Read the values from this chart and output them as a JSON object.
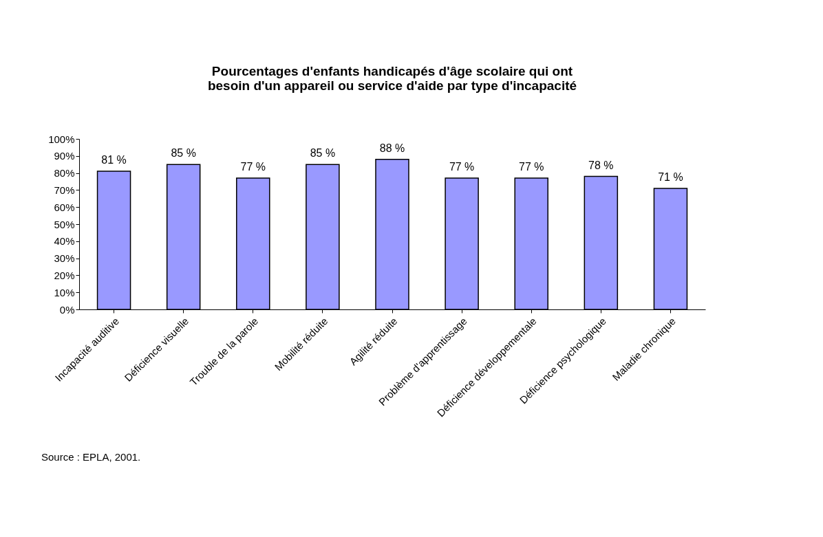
{
  "chart_data": {
    "type": "bar",
    "title": "Pourcentages d'enfants handicapés d'âge scolaire qui ont besoin d'un appareil ou service d'aide par type d'incapacité",
    "categories": [
      "Incapacité auditive",
      "Déficience visuelle",
      "Trouble de la parole",
      "Mobilité réduite",
      "Agilité réduite",
      "Problème d'apprentissage",
      "Déficience développementale",
      "Déficience psychologique",
      "Maladie chronique"
    ],
    "values": [
      81,
      85,
      77,
      85,
      88,
      77,
      77,
      78,
      71
    ],
    "value_labels": [
      "81 %",
      "85 %",
      "77 %",
      "85 %",
      "88 %",
      "77 %",
      "77 %",
      "78 %",
      "71 %"
    ],
    "color": "#9999ff",
    "ylim": [
      0,
      100
    ],
    "yticks": [
      {
        "value": 0,
        "label": "0%"
      },
      {
        "value": 10,
        "label": "10%"
      },
      {
        "value": 20,
        "label": "20%"
      },
      {
        "value": 30,
        "label": "30%"
      },
      {
        "value": 40,
        "label": "40%"
      },
      {
        "value": 50,
        "label": "50%"
      },
      {
        "value": 60,
        "label": "60%"
      },
      {
        "value": 70,
        "label": "70%"
      },
      {
        "value": 80,
        "label": "80%"
      },
      {
        "value": 90,
        "label": "90%"
      },
      {
        "value": 100,
        "label": "100%"
      }
    ],
    "grid": false,
    "annotations": [
      "Source : EPLA, 2001."
    ]
  }
}
